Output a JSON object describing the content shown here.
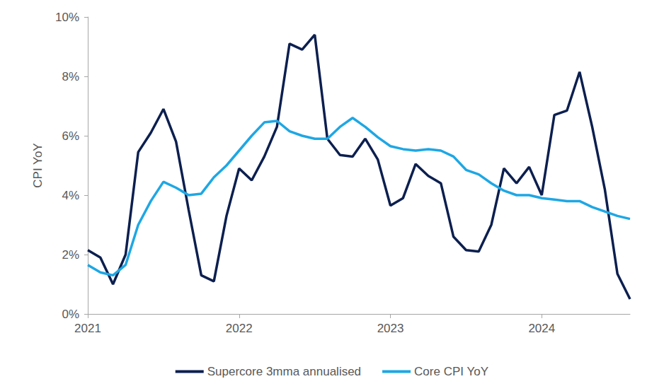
{
  "chart_data": {
    "type": "line",
    "y_label": "CPI YoY",
    "categories": [
      "2021",
      null,
      null,
      null,
      null,
      null,
      null,
      null,
      null,
      null,
      null,
      null,
      "2022",
      null,
      null,
      null,
      null,
      null,
      null,
      null,
      null,
      null,
      null,
      null,
      "2023",
      null,
      null,
      null,
      null,
      null,
      null,
      null,
      null,
      null,
      null,
      null,
      "2024",
      null,
      null,
      null,
      null,
      null,
      null,
      null
    ],
    "series": [
      {
        "name": "Supercore 3mma annualised",
        "color": "#0c1f4f",
        "line_style": "solid",
        "marker": "none",
        "values": [
          2.15,
          1.9,
          1.0,
          2.0,
          5.45,
          6.1,
          6.9,
          5.8,
          3.5,
          1.3,
          1.1,
          3.3,
          4.9,
          4.5,
          5.3,
          6.3,
          9.1,
          8.9,
          9.4,
          5.9,
          5.35,
          5.3,
          5.9,
          5.2,
          3.65,
          3.9,
          5.05,
          4.65,
          4.4,
          2.6,
          2.15,
          2.1,
          3.0,
          4.9,
          4.4,
          4.95,
          4.0,
          6.7,
          6.85,
          8.15,
          6.3,
          4.2,
          1.35,
          0.5
        ]
      },
      {
        "name": "Core CPI YoY",
        "color": "#1ea7e4",
        "line_style": "solid",
        "marker": "none",
        "values": [
          1.65,
          1.4,
          1.3,
          1.65,
          3.0,
          3.8,
          4.45,
          4.25,
          4.0,
          4.05,
          4.6,
          5.0,
          5.5,
          6.0,
          6.45,
          6.5,
          6.15,
          6.0,
          5.9,
          5.9,
          6.3,
          6.6,
          6.3,
          5.95,
          5.65,
          5.55,
          5.5,
          5.55,
          5.5,
          5.3,
          4.85,
          4.7,
          4.4,
          4.15,
          4.0,
          4.0,
          3.9,
          3.85,
          3.8,
          3.8,
          3.6,
          3.45,
          3.3,
          3.2
        ]
      }
    ],
    "ylim": [
      0,
      10
    ],
    "yticks": [
      {
        "value": 0,
        "label": "0%"
      },
      {
        "value": 2,
        "label": "2%"
      },
      {
        "value": 4,
        "label": "4%"
      },
      {
        "value": 6,
        "label": "6%"
      },
      {
        "value": 8,
        "label": "8%"
      },
      {
        "value": 10,
        "label": "10%"
      }
    ],
    "grid": false,
    "legend": "bottom"
  }
}
